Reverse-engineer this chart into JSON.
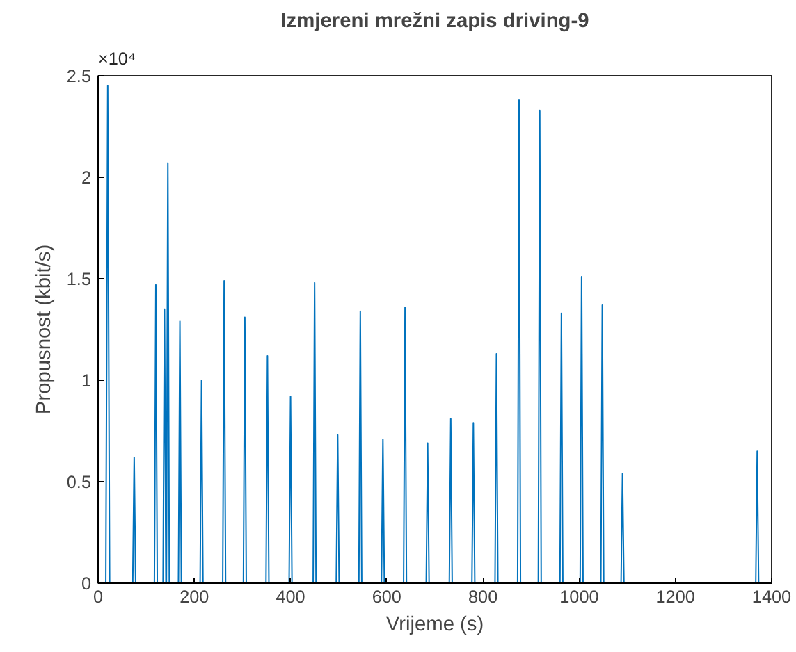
{
  "chart_data": {
    "type": "line",
    "title": "Izmjereni mrežni zapis driving-9",
    "xlabel": "Vrijeme (s)",
    "ylabel": "Propusnost (kbit/s)",
    "annotations": [
      "×10⁴"
    ],
    "series": [
      {
        "color": "#0072bd",
        "x": [
          0,
          16,
          20,
          24,
          72,
          75,
          78,
          117,
          120,
          123,
          135,
          138,
          141,
          142,
          145,
          148,
          167,
          170,
          173,
          212,
          215,
          218,
          259,
          262,
          265,
          302,
          305,
          308,
          349,
          352,
          355,
          397,
          400,
          403,
          447,
          450,
          453,
          495,
          498,
          501,
          542,
          545,
          548,
          589,
          592,
          595,
          635,
          638,
          641,
          682,
          685,
          688,
          730,
          733,
          736,
          777,
          780,
          783,
          825,
          828,
          831,
          872,
          875,
          878,
          915,
          918,
          921,
          960,
          963,
          966,
          1002,
          1005,
          1008,
          1045,
          1048,
          1051,
          1087,
          1090,
          1093,
          1367,
          1370,
          1373,
          1400
        ],
        "values": [
          0,
          0,
          2.45,
          0,
          0,
          0.62,
          0,
          0,
          1.47,
          0,
          0,
          1.35,
          0,
          0,
          2.07,
          0,
          0,
          1.29,
          0,
          0,
          1.0,
          0,
          0,
          1.49,
          0,
          0,
          1.31,
          0,
          0,
          1.12,
          0,
          0,
          0.92,
          0,
          0,
          1.48,
          0,
          0,
          0.73,
          0,
          0,
          1.34,
          0,
          0,
          0.71,
          0,
          0,
          1.36,
          0,
          0,
          0.69,
          0,
          0,
          0.81,
          0,
          0,
          0.79,
          0,
          0,
          1.13,
          0,
          0,
          2.38,
          0,
          0,
          2.33,
          0,
          0,
          1.33,
          0,
          0,
          1.51,
          0,
          0,
          1.37,
          0,
          0,
          0.54,
          0,
          0,
          0.65,
          0,
          0
        ]
      }
    ],
    "xlim": [
      0,
      1400
    ],
    "xticks": [
      0,
      200,
      400,
      600,
      800,
      1000,
      1200,
      1400
    ],
    "ylim": [
      0,
      2.5
    ],
    "yticks": [
      0,
      0.5,
      1,
      1.5,
      2,
      2.5
    ],
    "grid": false,
    "marker": "none",
    "line_style": "solid"
  }
}
